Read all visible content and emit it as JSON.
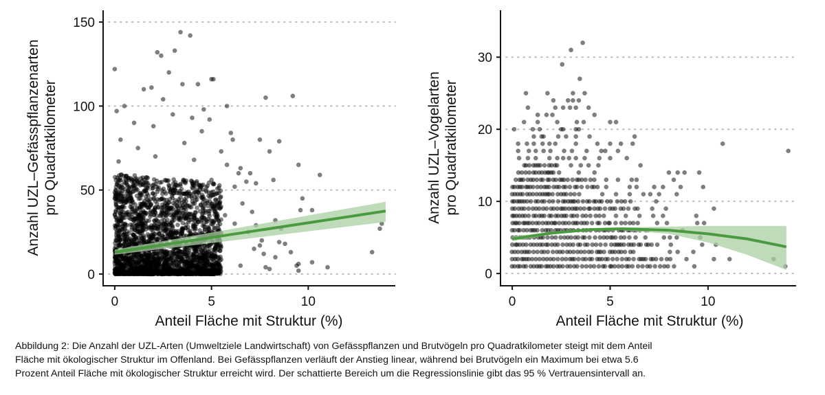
{
  "caption": [
    "Abbildung 2: Die Anzahl der UZL-Arten (Umweltziele Landwirtschaft) von Gefässpflanzen und Brutvögeln pro Quadratkilometer steigt mit dem Anteil",
    "Fläche mit ökologischer Struktur im Offenland. Bei Gefässpflanzen verläuft der Anstieg linear, während bei Brutvögeln ein Maximum bei etwa 5.6",
    "Prozent Anteil Fläche mit ökologischer Struktur erreicht wird. Der schattierte Bereich um die Regressionslinie gibt das 95 % Vertrauensintervall an."
  ],
  "colors": {
    "points": "#000000",
    "fit_line": "#4a9a3f",
    "ci_band": "#a9cfa1",
    "grid": "#bbbbbb"
  },
  "chart_data": [
    {
      "type": "scatter",
      "xlabel": "Anteil Fläche mit Struktur (%)",
      "ylabel": [
        "Anzahl UZL–Gefässpflanzenarten",
        "pro Quadratkilometer"
      ],
      "xticks": [
        0,
        5,
        10
      ],
      "yticks": [
        0,
        50,
        100,
        150
      ],
      "xlim": [
        -0.6,
        14.5
      ],
      "ylim": [
        -7,
        157
      ],
      "grid": "horizontal dotted",
      "dense_cloud": {
        "x_range": [
          0,
          5.5
        ],
        "y_range": [
          0,
          60
        ],
        "concentration": "near y=0"
      },
      "points": [
        [
          0,
          122
        ],
        [
          3.4,
          144
        ],
        [
          3.9,
          142
        ],
        [
          2.2,
          132
        ],
        [
          2.4,
          130
        ],
        [
          3.1,
          133
        ],
        [
          0.1,
          97
        ],
        [
          0.5,
          100
        ],
        [
          1.5,
          110
        ],
        [
          2.5,
          104
        ],
        [
          3.5,
          113
        ],
        [
          4.3,
          113
        ],
        [
          5.0,
          116
        ],
        [
          5.1,
          116
        ],
        [
          5.8,
          100
        ],
        [
          7.8,
          105
        ],
        [
          9.2,
          106
        ],
        [
          6.0,
          84
        ],
        [
          7.5,
          80
        ],
        [
          8.0,
          73
        ],
        [
          8.5,
          79
        ],
        [
          9.5,
          65
        ],
        [
          10.6,
          59
        ],
        [
          5.8,
          65
        ],
        [
          6.5,
          63
        ],
        [
          7.0,
          60
        ],
        [
          7.3,
          54
        ],
        [
          8.2,
          56
        ],
        [
          9.7,
          45
        ],
        [
          10.2,
          38
        ],
        [
          13.8,
          30
        ],
        [
          13.7,
          27
        ],
        [
          13.3,
          13
        ],
        [
          11.0,
          4
        ],
        [
          10.2,
          7
        ],
        [
          9.5,
          6
        ],
        [
          9.4,
          5
        ],
        [
          9.5,
          2
        ],
        [
          8.3,
          10
        ],
        [
          8.0,
          3
        ],
        [
          7.8,
          4
        ],
        [
          7.2,
          15
        ],
        [
          7.5,
          17
        ],
        [
          8.5,
          19
        ],
        [
          8.8,
          18
        ],
        [
          9.1,
          13
        ],
        [
          7.3,
          29
        ],
        [
          7.6,
          20
        ],
        [
          6.2,
          52
        ],
        [
          6.8,
          55
        ],
        [
          6.6,
          42
        ],
        [
          7.1,
          37
        ],
        [
          8.6,
          27
        ],
        [
          8.3,
          32
        ],
        [
          9.6,
          38
        ],
        [
          1,
          90
        ],
        [
          2,
          88
        ],
        [
          3,
          95
        ],
        [
          4,
          93
        ],
        [
          0.3,
          80
        ],
        [
          4.5,
          85
        ],
        [
          5.5,
          73
        ],
        [
          2.8,
          120
        ],
        [
          1.9,
          111
        ],
        [
          4.6,
          98
        ],
        [
          4.9,
          92
        ],
        [
          6.1,
          80
        ],
        [
          6.4,
          60
        ],
        [
          5.3,
          48
        ],
        [
          5.7,
          35
        ],
        [
          6.2,
          30
        ],
        [
          6.9,
          25
        ],
        [
          7.7,
          12
        ],
        [
          6.5,
          5
        ],
        [
          0.2,
          67
        ],
        [
          1.2,
          75
        ],
        [
          2.1,
          70
        ],
        [
          3.6,
          78
        ],
        [
          4.1,
          68
        ],
        [
          0.6,
          58
        ],
        [
          5.0,
          56
        ]
      ],
      "fit": {
        "model": "linear",
        "x": [
          0,
          14
        ],
        "y": [
          13,
          37.5
        ],
        "ci_lower": [
          11.5,
          31
        ],
        "ci_upper": [
          14.5,
          43
        ]
      }
    },
    {
      "type": "scatter",
      "xlabel": "Anteil Fläche mit Struktur (%)",
      "ylabel": [
        "Anzahl UZL–Vogelarten",
        "pro Quadratkilometer"
      ],
      "xticks": [
        0,
        5,
        10
      ],
      "yticks": [
        0,
        10,
        20,
        30
      ],
      "xlim": [
        -0.6,
        14.5
      ],
      "ylim": [
        -1.7,
        36.5
      ],
      "grid": "horizontal dotted",
      "dense_rows": [
        [
          1,
          0,
          8.3
        ],
        [
          2,
          0,
          8.1
        ],
        [
          3,
          0,
          6.3
        ],
        [
          4,
          0,
          7.5
        ],
        [
          5,
          0,
          6.1
        ],
        [
          6,
          0,
          7.0
        ],
        [
          7,
          0,
          6.5
        ],
        [
          8,
          0,
          4.7
        ],
        [
          9,
          0,
          6.6
        ],
        [
          10,
          0,
          6.1
        ],
        [
          11,
          0,
          3.6
        ],
        [
          12,
          0,
          4.4
        ],
        [
          13,
          0.2,
          4.4
        ],
        [
          14,
          0.3,
          2.5
        ],
        [
          15,
          0.6,
          2.4
        ]
      ],
      "points": [
        [
          3.6,
          32
        ],
        [
          3.0,
          31
        ],
        [
          2.55,
          29
        ],
        [
          3.45,
          27
        ],
        [
          0.7,
          25
        ],
        [
          1.8,
          25
        ],
        [
          3.1,
          25
        ],
        [
          3.7,
          25
        ],
        [
          2.1,
          24
        ],
        [
          2.85,
          24
        ],
        [
          3.1,
          24
        ],
        [
          3.4,
          24
        ],
        [
          0.8,
          23
        ],
        [
          2.2,
          23
        ],
        [
          2.6,
          23
        ],
        [
          2.95,
          23
        ],
        [
          3.25,
          23
        ],
        [
          3.9,
          23
        ],
        [
          1.3,
          22
        ],
        [
          1.75,
          22
        ],
        [
          2.05,
          22
        ],
        [
          4.2,
          22
        ],
        [
          0.6,
          21
        ],
        [
          1.3,
          21
        ],
        [
          2.3,
          21
        ],
        [
          3.3,
          21
        ],
        [
          3.65,
          21
        ],
        [
          5.0,
          21
        ],
        [
          5.3,
          21
        ],
        [
          0.1,
          20
        ],
        [
          1.05,
          20
        ],
        [
          1.4,
          20
        ],
        [
          2.5,
          20
        ],
        [
          2.6,
          20
        ],
        [
          3.25,
          20
        ],
        [
          3.4,
          20
        ],
        [
          1.1,
          19
        ],
        [
          1.5,
          19
        ],
        [
          1.6,
          19
        ],
        [
          2.35,
          19
        ],
        [
          2.75,
          19
        ],
        [
          3.25,
          19
        ],
        [
          3.95,
          19
        ],
        [
          6.25,
          19
        ],
        [
          0.3,
          18
        ],
        [
          0.75,
          18
        ],
        [
          1.1,
          18
        ],
        [
          1.55,
          18
        ],
        [
          1.9,
          18
        ],
        [
          2.2,
          18
        ],
        [
          3.25,
          18
        ],
        [
          4.35,
          18
        ],
        [
          5.0,
          18
        ],
        [
          5.55,
          18
        ],
        [
          6.15,
          18
        ],
        [
          10.75,
          18
        ],
        [
          0.3,
          17
        ],
        [
          0.85,
          17
        ],
        [
          1.2,
          17
        ],
        [
          1.6,
          17
        ],
        [
          1.95,
          17
        ],
        [
          2.65,
          17
        ],
        [
          3.05,
          17
        ],
        [
          3.8,
          17
        ],
        [
          4.55,
          17
        ],
        [
          4.75,
          17
        ],
        [
          5.4,
          17
        ],
        [
          14.1,
          17
        ],
        [
          0.35,
          16
        ],
        [
          0.8,
          16
        ],
        [
          1.2,
          16
        ],
        [
          1.9,
          16
        ],
        [
          2.3,
          16
        ],
        [
          2.6,
          16
        ],
        [
          2.9,
          16
        ],
        [
          3.25,
          16
        ],
        [
          3.7,
          16
        ],
        [
          4.45,
          16
        ],
        [
          5.0,
          16
        ],
        [
          5.85,
          16
        ],
        [
          3.0,
          15
        ],
        [
          3.5,
          15
        ],
        [
          3.9,
          15
        ],
        [
          4.4,
          15
        ],
        [
          6.55,
          15
        ],
        [
          3.4,
          14
        ],
        [
          4.2,
          14
        ],
        [
          8.0,
          14
        ],
        [
          8.45,
          14
        ],
        [
          8.8,
          14
        ],
        [
          9.55,
          14
        ],
        [
          4.8,
          13
        ],
        [
          5.4,
          13
        ],
        [
          6.1,
          13
        ],
        [
          6.35,
          13
        ],
        [
          8.25,
          13
        ],
        [
          4.8,
          12
        ],
        [
          6.0,
          12
        ],
        [
          6.35,
          12
        ],
        [
          7.25,
          12
        ],
        [
          7.7,
          12
        ],
        [
          8.6,
          12
        ],
        [
          9.75,
          12
        ],
        [
          4.6,
          11
        ],
        [
          5.3,
          11
        ],
        [
          6.0,
          11
        ],
        [
          6.7,
          11
        ],
        [
          7.05,
          11
        ],
        [
          7.5,
          11
        ],
        [
          8.4,
          11
        ],
        [
          7.35,
          10
        ],
        [
          7.15,
          9
        ],
        [
          7.85,
          9
        ],
        [
          10.3,
          9
        ],
        [
          5.3,
          8
        ],
        [
          5.8,
          8
        ],
        [
          6.5,
          8
        ],
        [
          7.2,
          8
        ],
        [
          7.7,
          8
        ],
        [
          9.4,
          8
        ],
        [
          7.4,
          7
        ],
        [
          7.9,
          7
        ],
        [
          9.45,
          7
        ],
        [
          9.8,
          7
        ],
        [
          8.7,
          6
        ],
        [
          6.3,
          5
        ],
        [
          6.8,
          5
        ],
        [
          7.75,
          5
        ],
        [
          8.05,
          5
        ],
        [
          8.4,
          5
        ],
        [
          9.6,
          5
        ],
        [
          8.1,
          4
        ],
        [
          9.7,
          4
        ],
        [
          10.4,
          4
        ],
        [
          8.05,
          3
        ],
        [
          8.45,
          3
        ],
        [
          9.25,
          3
        ],
        [
          8.9,
          2
        ],
        [
          10.3,
          2
        ],
        [
          11.1,
          2
        ],
        [
          13.35,
          2
        ],
        [
          9.3,
          1
        ],
        [
          13.95,
          1
        ]
      ],
      "fit": {
        "model": "quadratic",
        "maximum_x": 5.6,
        "x": [
          0,
          2,
          4,
          5.6,
          8,
          10,
          12,
          14
        ],
        "y": [
          4.8,
          5.6,
          6.1,
          6.2,
          6.0,
          5.5,
          4.8,
          3.7
        ],
        "ci_lower": [
          4.5,
          5.4,
          5.95,
          6.0,
          5.5,
          4.3,
          2.6,
          0.5
        ],
        "ci_upper": [
          5.1,
          5.8,
          6.25,
          6.4,
          6.5,
          6.6,
          6.6,
          6.6
        ]
      }
    }
  ]
}
